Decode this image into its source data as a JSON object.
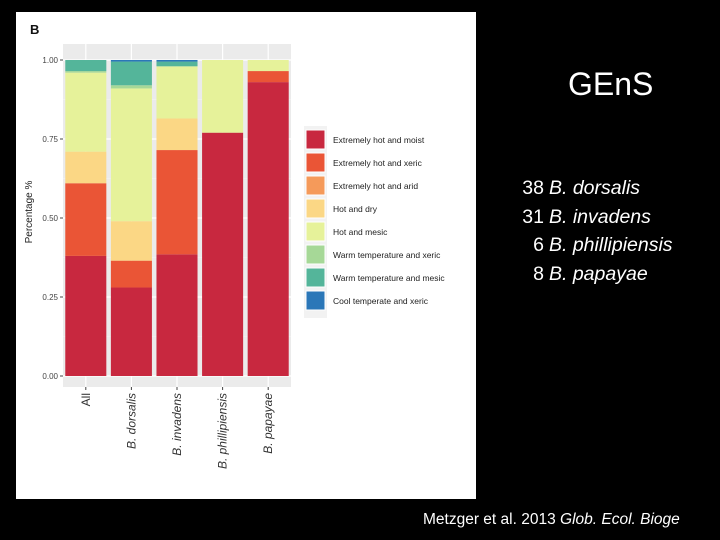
{
  "slide": {
    "title": "GEnS",
    "panel_letter": "B",
    "species_counts": [
      {
        "count": "38",
        "species": "B. dorsalis"
      },
      {
        "count": "31",
        "species": "B. invadens"
      },
      {
        "count": "6",
        "species": "B. phillipiensis"
      },
      {
        "count": "8",
        "species": "B. papayae"
      }
    ],
    "citation": {
      "authors": "Metzger et al. 2013",
      "journal": "Glob. Ecol. Bioge"
    }
  },
  "chart_data": {
    "type": "bar",
    "stacked": true,
    "title": "",
    "xlabel": "",
    "ylabel": "Percentage %",
    "ylim": [
      0,
      1
    ],
    "yticks": [
      "0.00",
      "0.25",
      "0.50",
      "0.75",
      "1.00"
    ],
    "ytick_values": [
      0,
      0.25,
      0.5,
      0.75,
      1.0
    ],
    "categories": [
      "All",
      "B. dorsalis",
      "B. invadens",
      "B. phillipiensis",
      "B. papayae"
    ],
    "legend_position": "right",
    "series": [
      {
        "name": "Extremely hot and moist",
        "color": "#c8283f",
        "values": [
          0.38,
          0.28,
          0.385,
          0.77,
          0.93
        ]
      },
      {
        "name": "Extremely hot and xeric",
        "color": "#ea5536",
        "values": [
          0.23,
          0.085,
          0.33,
          0,
          0.035
        ]
      },
      {
        "name": "Extremely hot and arid",
        "color": "#f59a5a",
        "values": [
          0,
          0,
          0,
          0,
          0
        ]
      },
      {
        "name": "Hot and dry",
        "color": "#fbd785",
        "values": [
          0.1,
          0.125,
          0.1,
          0,
          0
        ]
      },
      {
        "name": "Hot and mesic",
        "color": "#e6f29a",
        "values": [
          0.25,
          0.42,
          0.165,
          0.23,
          0.035
        ]
      },
      {
        "name": "Warm temperature and xeric",
        "color": "#a6d897",
        "values": [
          0.005,
          0.01,
          0,
          0,
          0
        ]
      },
      {
        "name": "Warm temperature and mesic",
        "color": "#54b59a",
        "values": [
          0.035,
          0.075,
          0.015,
          0,
          0
        ]
      },
      {
        "name": "Cool temperate and xeric",
        "color": "#2b77b8",
        "values": [
          0,
          0.005,
          0.005,
          0,
          0
        ]
      }
    ]
  }
}
